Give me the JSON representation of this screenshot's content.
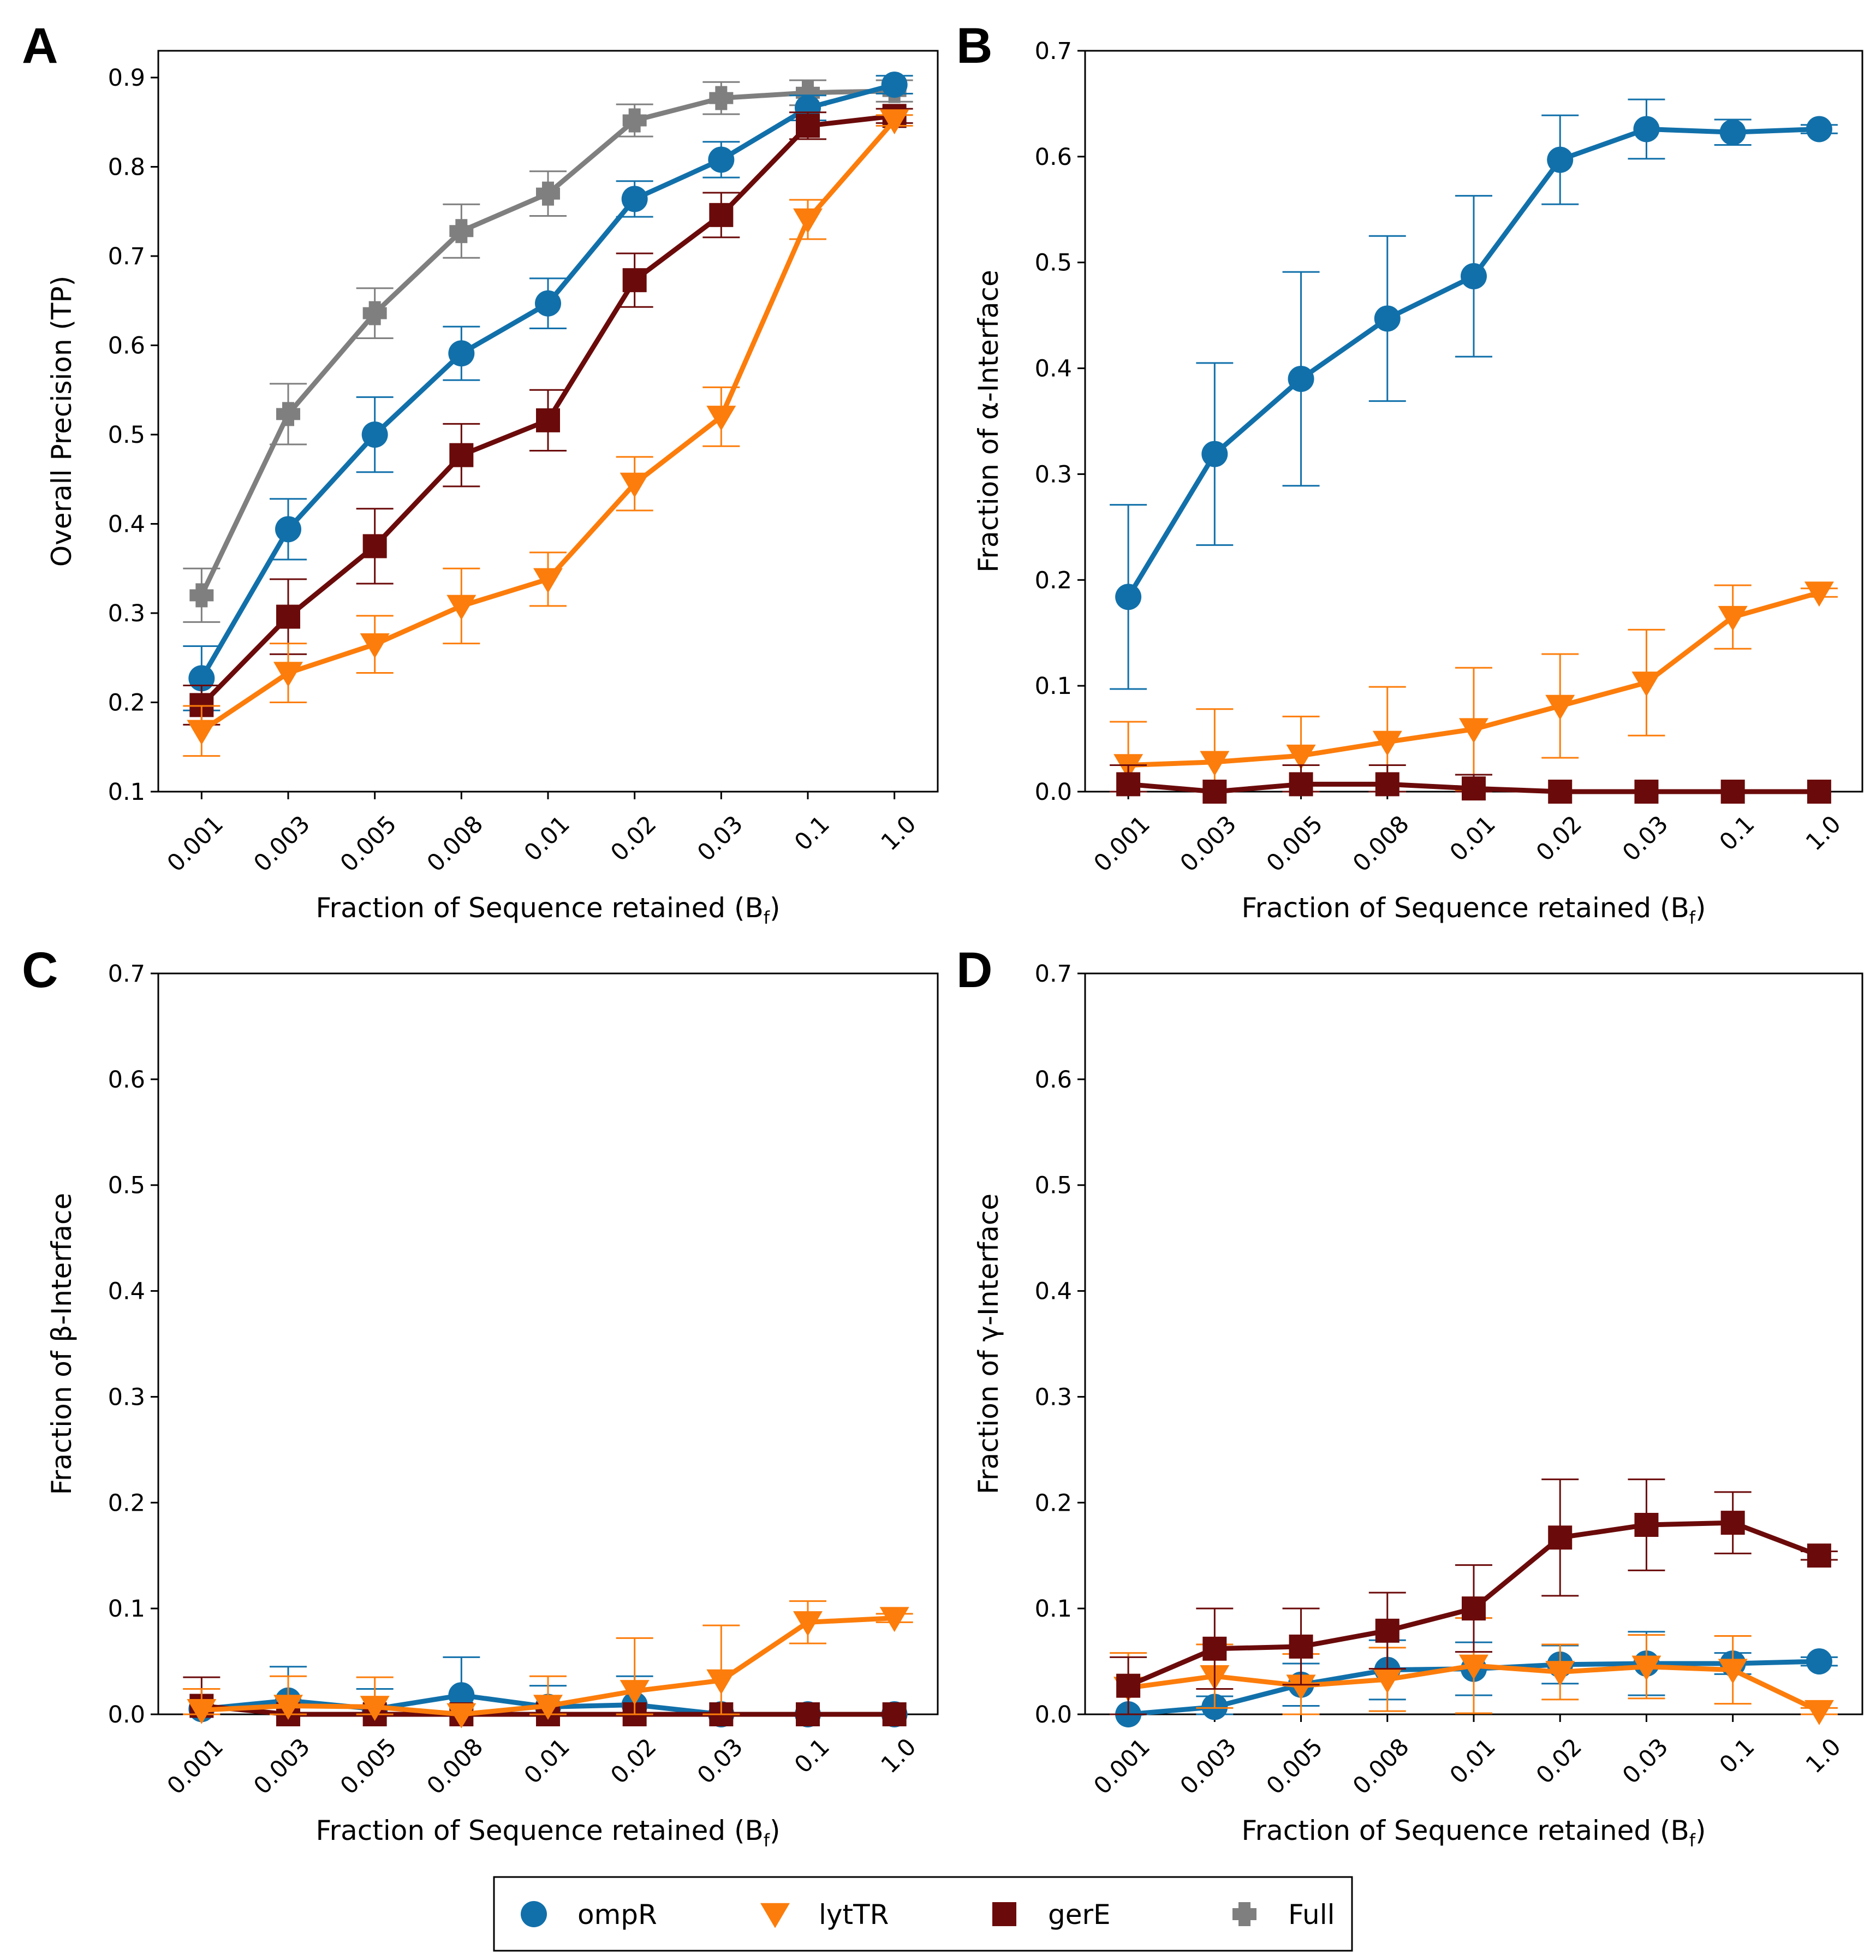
{
  "colors": {
    "ompR": "#1170aa",
    "lytTR": "#fc7d0b",
    "gerE": "#6b0a0a",
    "Full": "#7f7f7f"
  },
  "legend": [
    {
      "name": "ompR",
      "marker": "circle"
    },
    {
      "name": "lytTR",
      "marker": "triangle-down"
    },
    {
      "name": "gerE",
      "marker": "square"
    },
    {
      "name": "Full",
      "marker": "plus"
    }
  ],
  "chart_data": [
    {
      "panel": "A",
      "type": "line",
      "title": "",
      "xlabel": "Fraction of Sequence retained (B",
      "xlabel_sub": "f",
      "xlabel_close": ")",
      "ylabel": "Overall Precision (TP)",
      "categories": [
        "0.001",
        "0.003",
        "0.005",
        "0.008",
        "0.01",
        "0.02",
        "0.03",
        "0.1",
        "1.0"
      ],
      "ylim": [
        0.1,
        0.93
      ],
      "yticks": [
        "0.1",
        "0.2",
        "0.3",
        "0.4",
        "0.5",
        "0.6",
        "0.7",
        "0.8",
        "0.9"
      ],
      "series": [
        {
          "name": "Full",
          "values": [
            0.32,
            0.523,
            0.636,
            0.728,
            0.77,
            0.852,
            0.877,
            0.883,
            0.885
          ],
          "err": [
            0.03,
            0.034,
            0.028,
            0.03,
            0.025,
            0.018,
            0.018,
            0.014,
            0.012
          ]
        },
        {
          "name": "ompR",
          "values": [
            0.227,
            0.394,
            0.5,
            0.591,
            0.647,
            0.764,
            0.808,
            0.866,
            0.892
          ],
          "err": [
            0.036,
            0.034,
            0.042,
            0.03,
            0.028,
            0.02,
            0.02,
            0.014,
            0.01
          ]
        },
        {
          "name": "gerE",
          "values": [
            0.197,
            0.296,
            0.375,
            0.477,
            0.516,
            0.673,
            0.746,
            0.846,
            0.857
          ],
          "err": [
            0.022,
            0.042,
            0.042,
            0.035,
            0.034,
            0.03,
            0.025,
            0.015,
            0.008
          ]
        },
        {
          "name": "lytTR",
          "values": [
            0.168,
            0.233,
            0.265,
            0.308,
            0.338,
            0.445,
            0.52,
            0.741,
            0.852
          ],
          "err": [
            0.028,
            0.033,
            0.032,
            0.042,
            0.03,
            0.03,
            0.033,
            0.022,
            0.006
          ]
        }
      ]
    },
    {
      "panel": "B",
      "type": "line",
      "title": "",
      "xlabel": "Fraction of Sequence retained (B",
      "xlabel_sub": "f",
      "xlabel_close": ")",
      "ylabel": "Fraction of  α-Interface",
      "categories": [
        "0.001",
        "0.003",
        "0.005",
        "0.008",
        "0.01",
        "0.02",
        "0.03",
        "0.1",
        "1.0"
      ],
      "ylim": [
        0,
        0.7
      ],
      "yticks": [
        "0.0",
        "0.1",
        "0.2",
        "0.3",
        "0.4",
        "0.5",
        "0.6",
        "0.7"
      ],
      "series": [
        {
          "name": "ompR",
          "values": [
            0.184,
            0.319,
            0.39,
            0.447,
            0.487,
            0.597,
            0.626,
            0.623,
            0.626
          ],
          "err": [
            0.087,
            0.086,
            0.101,
            0.078,
            0.076,
            0.042,
            0.028,
            0.012,
            0.004
          ]
        },
        {
          "name": "lytTR",
          "values": [
            0.025,
            0.028,
            0.034,
            0.047,
            0.059,
            0.081,
            0.103,
            0.165,
            0.188
          ],
          "err": [
            0.041,
            0.05,
            0.037,
            0.052,
            0.058,
            0.049,
            0.05,
            0.03,
            0.004
          ]
        },
        {
          "name": "gerE",
          "values": [
            0.007,
            0.0,
            0.007,
            0.007,
            0.003,
            0.0,
            0.0,
            0.0,
            0.0
          ],
          "err": [
            0.018,
            0.0,
            0.018,
            0.018,
            0.013,
            0.0,
            0.0,
            0.0,
            0.0
          ]
        }
      ]
    },
    {
      "panel": "C",
      "type": "line",
      "title": "",
      "xlabel": "Fraction of Sequence retained (B",
      "xlabel_sub": "f",
      "xlabel_close": ")",
      "ylabel": "Fraction of  β-Interface",
      "categories": [
        "0.001",
        "0.003",
        "0.005",
        "0.008",
        "0.01",
        "0.02",
        "0.03",
        "0.1",
        "1.0"
      ],
      "ylim": [
        0,
        0.7
      ],
      "yticks": [
        "0.0",
        "0.1",
        "0.2",
        "0.3",
        "0.4",
        "0.5",
        "0.6",
        "0.7"
      ],
      "series": [
        {
          "name": "ompR",
          "values": [
            0.005,
            0.013,
            0.005,
            0.018,
            0.007,
            0.009,
            0.0,
            0.0,
            0.0
          ],
          "err": [
            0.019,
            0.032,
            0.019,
            0.036,
            0.02,
            0.027,
            0.0,
            0.0,
            0.0
          ]
        },
        {
          "name": "gerE",
          "values": [
            0.008,
            0.0,
            0.0,
            0.0,
            0.0,
            0.0,
            0.0,
            0.0,
            0.0
          ],
          "err": [
            0.027,
            0.0,
            0.0,
            0.0,
            0.0,
            0.0,
            0.0,
            0.0,
            0.0
          ]
        },
        {
          "name": "lytTR",
          "values": [
            0.004,
            0.008,
            0.007,
            0.0,
            0.008,
            0.022,
            0.032,
            0.087,
            0.091
          ],
          "err": [
            0.02,
            0.028,
            0.028,
            0.0,
            0.028,
            0.05,
            0.052,
            0.02,
            0.004
          ]
        }
      ]
    },
    {
      "panel": "D",
      "type": "line",
      "title": "",
      "xlabel": "Fraction of Sequence retained (B",
      "xlabel_sub": "f",
      "xlabel_close": ")",
      "ylabel": "Fraction of  γ-Interface",
      "categories": [
        "0.001",
        "0.003",
        "0.005",
        "0.008",
        "0.01",
        "0.02",
        "0.03",
        "0.1",
        "1.0"
      ],
      "ylim": [
        0,
        0.7
      ],
      "yticks": [
        "0.0",
        "0.1",
        "0.2",
        "0.3",
        "0.4",
        "0.5",
        "0.6",
        "0.7"
      ],
      "series": [
        {
          "name": "ompR",
          "values": [
            0.0,
            0.007,
            0.028,
            0.042,
            0.043,
            0.047,
            0.048,
            0.048,
            0.05
          ],
          "err": [
            0.0,
            0.01,
            0.02,
            0.028,
            0.025,
            0.018,
            0.03,
            0.01,
            0.004
          ]
        },
        {
          "name": "lytTR",
          "values": [
            0.025,
            0.036,
            0.027,
            0.033,
            0.046,
            0.04,
            0.045,
            0.042,
            0.003
          ],
          "err": [
            0.033,
            0.03,
            0.03,
            0.03,
            0.045,
            0.026,
            0.03,
            0.032,
            0.003
          ]
        },
        {
          "name": "gerE",
          "values": [
            0.027,
            0.062,
            0.064,
            0.079,
            0.1,
            0.167,
            0.179,
            0.181,
            0.15
          ],
          "err": [
            0.027,
            0.038,
            0.036,
            0.036,
            0.041,
            0.055,
            0.043,
            0.029,
            0.004
          ]
        }
      ]
    }
  ]
}
